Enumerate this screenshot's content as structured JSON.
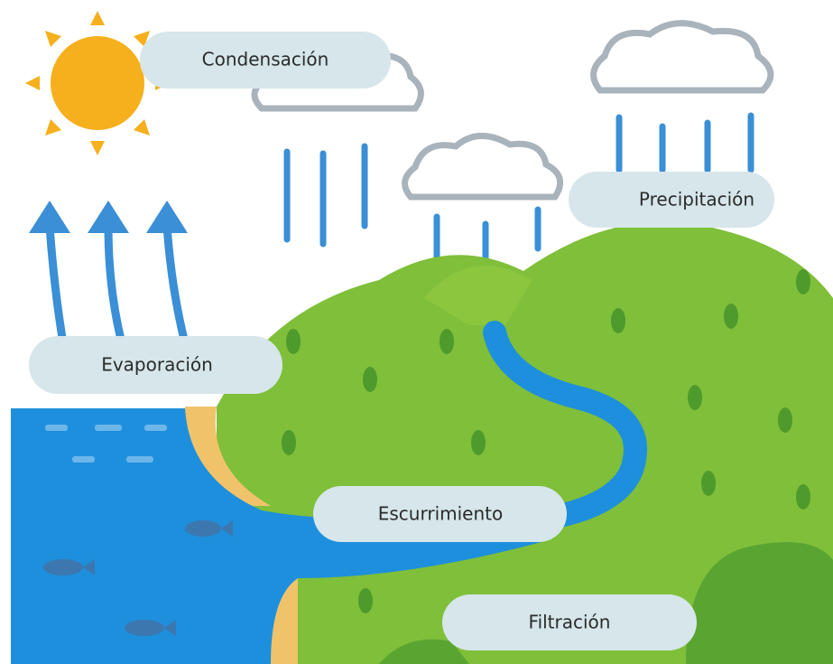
{
  "labels": [
    "Condensación",
    "Precipitación",
    "Evaporación",
    "Escurrimiento",
    "Filtración"
  ]
}
